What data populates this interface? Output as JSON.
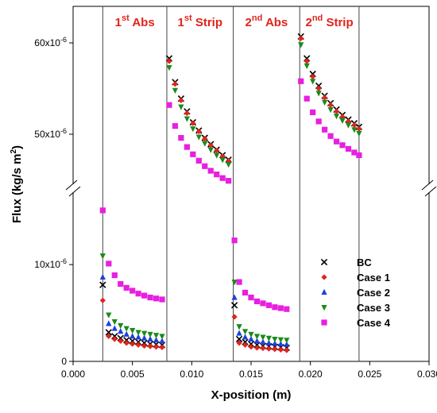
{
  "chart_data": {
    "type": "scatter",
    "xlabel": "X-position (m)",
    "ylabel": "Flux (kg/s m",
    "ylabel_sup": "2",
    "ylabel_close": ")",
    "xlim": [
      0,
      0.03
    ],
    "x_ticks": [
      {
        "v": 0,
        "label": "0.000"
      },
      {
        "v": 0.005,
        "label": "0.005"
      },
      {
        "v": 0.01,
        "label": "0.010"
      },
      {
        "v": 0.015,
        "label": "0.015"
      },
      {
        "v": 0.02,
        "label": "0.020"
      },
      {
        "v": 0.025,
        "label": "0.025"
      },
      {
        "v": 0.03,
        "label": "0.030"
      }
    ],
    "y_axis_break": true,
    "lower_segment": {
      "ylim": [
        0,
        1.6e-05
      ],
      "ticks": [
        {
          "v": 0,
          "label": "0"
        },
        {
          "v": 1e-05,
          "label": "10x10",
          "sup": "-6"
        }
      ]
    },
    "upper_segment": {
      "ylim": [
        4.6e-05,
        6.4e-05
      ],
      "ticks": [
        {
          "v": 5e-05,
          "label": "50x10",
          "sup": "-6"
        },
        {
          "v": 6e-05,
          "label": "60x10",
          "sup": "-6"
        }
      ]
    },
    "region_boundaries": [
      0.0025,
      0.0079,
      0.0135,
      0.0191,
      0.0241
    ],
    "regions": [
      {
        "pre": "1",
        "sup": "st",
        "post": " Abs",
        "x_center": 0.0052
      },
      {
        "pre": "1",
        "sup": "st",
        "post": " Strip",
        "x_center": 0.0107
      },
      {
        "pre": "2",
        "sup": "nd",
        "post": " Abs",
        "x_center": 0.0163
      },
      {
        "pre": "2",
        "sup": "nd",
        "post": " Strip",
        "x_center": 0.0216
      }
    ],
    "legend_position": "lower-right",
    "series": [
      {
        "name": "BC",
        "color": "#000000",
        "marker": "cross",
        "points": [
          [
            0.0025,
            7.9e-06
          ],
          [
            0.003,
            3e-06
          ],
          [
            0.0035,
            2.6e-06
          ],
          [
            0.004,
            2.4e-06
          ],
          [
            0.0045,
            2.2e-06
          ],
          [
            0.005,
            2.1e-06
          ],
          [
            0.0055,
            2e-06
          ],
          [
            0.006,
            1.9e-06
          ],
          [
            0.0065,
            1.8e-06
          ],
          [
            0.007,
            1.75e-06
          ],
          [
            0.0075,
            1.7e-06
          ],
          [
            0.0081,
            5.83e-05
          ],
          [
            0.0086,
            5.57e-05
          ],
          [
            0.0091,
            5.39e-05
          ],
          [
            0.0096,
            5.25e-05
          ],
          [
            0.0101,
            5.13e-05
          ],
          [
            0.0106,
            5.04e-05
          ],
          [
            0.0111,
            4.96e-05
          ],
          [
            0.0116,
            4.89e-05
          ],
          [
            0.0121,
            4.83e-05
          ],
          [
            0.0126,
            4.77e-05
          ],
          [
            0.0131,
            4.72e-05
          ],
          [
            0.0136,
            5.8e-06
          ],
          [
            0.014,
            2.3e-06
          ],
          [
            0.0145,
            2e-06
          ],
          [
            0.015,
            1.8e-06
          ],
          [
            0.0155,
            1.7e-06
          ],
          [
            0.016,
            1.6e-06
          ],
          [
            0.0165,
            1.55e-06
          ],
          [
            0.017,
            1.5e-06
          ],
          [
            0.0175,
            1.45e-06
          ],
          [
            0.018,
            1.4e-06
          ],
          [
            0.0192,
            6.07e-05
          ],
          [
            0.0197,
            5.83e-05
          ],
          [
            0.0202,
            5.66e-05
          ],
          [
            0.0207,
            5.53e-05
          ],
          [
            0.0212,
            5.42e-05
          ],
          [
            0.0217,
            5.34e-05
          ],
          [
            0.0222,
            5.27e-05
          ],
          [
            0.0227,
            5.21e-05
          ],
          [
            0.0232,
            5.16e-05
          ],
          [
            0.0237,
            5.12e-05
          ],
          [
            0.0241,
            5.08e-05
          ]
        ]
      },
      {
        "name": "Case 1",
        "color": "#e3231b",
        "marker": "diamond",
        "points": [
          [
            0.0025,
            6.3e-06
          ],
          [
            0.003,
            2.6e-06
          ],
          [
            0.0035,
            2.3e-06
          ],
          [
            0.004,
            2.1e-06
          ],
          [
            0.0045,
            1.9e-06
          ],
          [
            0.005,
            1.8e-06
          ],
          [
            0.0055,
            1.7e-06
          ],
          [
            0.006,
            1.6e-06
          ],
          [
            0.0065,
            1.55e-06
          ],
          [
            0.007,
            1.5e-06
          ],
          [
            0.0075,
            1.45e-06
          ],
          [
            0.0081,
            5.8e-05
          ],
          [
            0.0086,
            5.55e-05
          ],
          [
            0.0091,
            5.37e-05
          ],
          [
            0.0096,
            5.23e-05
          ],
          [
            0.0101,
            5.12e-05
          ],
          [
            0.0106,
            5.03e-05
          ],
          [
            0.0111,
            4.95e-05
          ],
          [
            0.0116,
            4.88e-05
          ],
          [
            0.0121,
            4.82e-05
          ],
          [
            0.0126,
            4.76e-05
          ],
          [
            0.0131,
            4.71e-05
          ],
          [
            0.0136,
            4.6e-06
          ],
          [
            0.014,
            1.9e-06
          ],
          [
            0.0145,
            1.7e-06
          ],
          [
            0.015,
            1.5e-06
          ],
          [
            0.0155,
            1.4e-06
          ],
          [
            0.016,
            1.35e-06
          ],
          [
            0.0165,
            1.3e-06
          ],
          [
            0.017,
            1.25e-06
          ],
          [
            0.0175,
            1.2e-06
          ],
          [
            0.018,
            1.15e-06
          ],
          [
            0.0192,
            6.05e-05
          ],
          [
            0.0197,
            5.8e-05
          ],
          [
            0.0202,
            5.63e-05
          ],
          [
            0.0207,
            5.5e-05
          ],
          [
            0.0212,
            5.4e-05
          ],
          [
            0.0217,
            5.32e-05
          ],
          [
            0.0222,
            5.25e-05
          ],
          [
            0.0227,
            5.19e-05
          ],
          [
            0.0232,
            5.14e-05
          ],
          [
            0.0237,
            5.1e-05
          ],
          [
            0.0241,
            5.06e-05
          ]
        ]
      },
      {
        "name": "Case 2",
        "color": "#1f3fe0",
        "marker": "triangle-up",
        "points": [
          [
            0.0025,
            8.7e-06
          ],
          [
            0.003,
            3.9e-06
          ],
          [
            0.0035,
            3.4e-06
          ],
          [
            0.004,
            3.1e-06
          ],
          [
            0.0045,
            2.8e-06
          ],
          [
            0.005,
            2.6e-06
          ],
          [
            0.0055,
            2.5e-06
          ],
          [
            0.006,
            2.4e-06
          ],
          [
            0.0065,
            2.3e-06
          ],
          [
            0.007,
            2.2e-06
          ],
          [
            0.0075,
            2.1e-06
          ],
          [
            0.0136,
            6.6e-06
          ],
          [
            0.014,
            2.9e-06
          ],
          [
            0.0145,
            2.5e-06
          ],
          [
            0.015,
            2.3e-06
          ],
          [
            0.0155,
            2.1e-06
          ],
          [
            0.016,
            2e-06
          ],
          [
            0.0165,
            1.9e-06
          ],
          [
            0.017,
            1.85e-06
          ],
          [
            0.0175,
            1.8e-06
          ],
          [
            0.018,
            1.75e-06
          ]
        ]
      },
      {
        "name": "Case 3",
        "color": "#1a8a1a",
        "marker": "triangle-down",
        "points": [
          [
            0.0025,
            1.09e-05
          ],
          [
            0.003,
            4.8e-06
          ],
          [
            0.0035,
            4.1e-06
          ],
          [
            0.004,
            3.7e-06
          ],
          [
            0.0045,
            3.4e-06
          ],
          [
            0.005,
            3.2e-06
          ],
          [
            0.0055,
            3e-06
          ],
          [
            0.006,
            2.9e-06
          ],
          [
            0.0065,
            2.8e-06
          ],
          [
            0.007,
            2.7e-06
          ],
          [
            0.0075,
            2.6e-06
          ],
          [
            0.0081,
            5.73e-05
          ],
          [
            0.0086,
            5.48e-05
          ],
          [
            0.0091,
            5.3e-05
          ],
          [
            0.0096,
            5.17e-05
          ],
          [
            0.0101,
            5.06e-05
          ],
          [
            0.0106,
            4.97e-05
          ],
          [
            0.0111,
            4.9e-05
          ],
          [
            0.0116,
            4.83e-05
          ],
          [
            0.0121,
            4.77e-05
          ],
          [
            0.0126,
            4.72e-05
          ],
          [
            0.0131,
            4.67e-05
          ],
          [
            0.0136,
            8.2e-06
          ],
          [
            0.014,
            3.6e-06
          ],
          [
            0.0145,
            3.1e-06
          ],
          [
            0.015,
            2.8e-06
          ],
          [
            0.0155,
            2.6e-06
          ],
          [
            0.016,
            2.5e-06
          ],
          [
            0.0165,
            2.4e-06
          ],
          [
            0.017,
            2.3e-06
          ],
          [
            0.0175,
            2.25e-06
          ],
          [
            0.018,
            2.2e-06
          ],
          [
            0.0192,
            5.98e-05
          ],
          [
            0.0197,
            5.75e-05
          ],
          [
            0.0202,
            5.58e-05
          ],
          [
            0.0207,
            5.45e-05
          ],
          [
            0.0212,
            5.35e-05
          ],
          [
            0.0217,
            5.27e-05
          ],
          [
            0.0222,
            5.2e-05
          ],
          [
            0.0227,
            5.15e-05
          ],
          [
            0.0232,
            5.1e-05
          ],
          [
            0.0237,
            5.05e-05
          ],
          [
            0.0241,
            5.01e-05
          ]
        ]
      },
      {
        "name": "Case 4",
        "color": "#e81fe0",
        "marker": "square",
        "points": [
          [
            0.0025,
            1.56e-05
          ],
          [
            0.003,
            1.01e-05
          ],
          [
            0.0035,
            8.9e-06
          ],
          [
            0.004,
            8e-06
          ],
          [
            0.0045,
            7.6e-06
          ],
          [
            0.005,
            7.3e-06
          ],
          [
            0.0055,
            7e-06
          ],
          [
            0.006,
            6.8e-06
          ],
          [
            0.0065,
            6.6e-06
          ],
          [
            0.007,
            6.5e-06
          ],
          [
            0.0075,
            6.4e-06
          ],
          [
            0.0081,
            5.32e-05
          ],
          [
            0.0086,
            5.09e-05
          ],
          [
            0.0091,
            4.96e-05
          ],
          [
            0.0096,
            4.86e-05
          ],
          [
            0.0101,
            4.78e-05
          ],
          [
            0.0106,
            4.71e-05
          ],
          [
            0.0111,
            4.65e-05
          ],
          [
            0.0116,
            4.6e-05
          ],
          [
            0.0121,
            4.56e-05
          ],
          [
            0.0126,
            4.52e-05
          ],
          [
            0.0131,
            4.49e-05
          ],
          [
            0.0136,
            1.25e-05
          ],
          [
            0.014,
            8.2e-06
          ],
          [
            0.0145,
            7.1e-06
          ],
          [
            0.015,
            6.6e-06
          ],
          [
            0.0155,
            6.2e-06
          ],
          [
            0.016,
            6e-06
          ],
          [
            0.0165,
            5.8e-06
          ],
          [
            0.017,
            5.6e-06
          ],
          [
            0.0175,
            5.5e-06
          ],
          [
            0.018,
            5.4e-06
          ],
          [
            0.0192,
            5.58e-05
          ],
          [
            0.0197,
            5.39e-05
          ],
          [
            0.0202,
            5.24e-05
          ],
          [
            0.0207,
            5.14e-05
          ],
          [
            0.0212,
            5.05e-05
          ],
          [
            0.0217,
            4.98e-05
          ],
          [
            0.0222,
            4.92e-05
          ],
          [
            0.0227,
            4.88e-05
          ],
          [
            0.0232,
            4.84e-05
          ],
          [
            0.0237,
            4.8e-05
          ],
          [
            0.0241,
            4.77e-05
          ]
        ]
      }
    ]
  }
}
